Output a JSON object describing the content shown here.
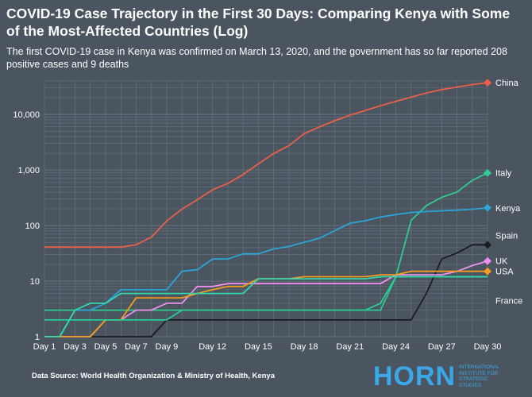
{
  "header": {
    "title": "COVID-19 Case Trajectory in the First 30 Days: Comparing Kenya with Some of the Most-Affected Countries (Log)",
    "subtitle": "The first COVID-19 case in Kenya was confirmed on March 13, 2020, and the government has so far reported 208 positive cases and 9 deaths"
  },
  "footer": {
    "source": "Data Source: World Health Organization & Ministry of Health, Kenya",
    "logo_word": "HORN",
    "logo_lines": [
      "INTERNATIONAL",
      "INSTITUTE FOR",
      "STRATEGIC",
      "STUDIES"
    ]
  },
  "colors": {
    "background": "#4a5560",
    "grid": "#6b7580",
    "logo": "#3aa8e8"
  },
  "chart_data": {
    "type": "line",
    "title": "COVID-19 Case Trajectory in the First 30 Days: Comparing Kenya with Some of the Most-Affected Countries (Log)",
    "xlabel": "",
    "ylabel": "",
    "yscale": "log",
    "ylim": [
      1,
      40000
    ],
    "xlim": [
      1,
      30
    ],
    "grid": true,
    "x_ticks": [
      1,
      3,
      5,
      7,
      9,
      12,
      15,
      18,
      21,
      24,
      27,
      30
    ],
    "x_tick_labels": [
      "Day 1",
      "Day 3",
      "Day 5",
      "Day 7",
      "Day 9",
      "Day 12",
      "Day 15",
      "Day 18",
      "Day 21",
      "Day 24",
      "Day 27",
      "Day 30"
    ],
    "y_ticks": [
      1,
      10,
      100,
      1000,
      10000
    ],
    "y_tick_labels": [
      "1",
      "10",
      "100",
      "1,000",
      "10,000"
    ],
    "x": [
      1,
      2,
      3,
      4,
      5,
      6,
      7,
      8,
      9,
      10,
      11,
      12,
      13,
      14,
      15,
      16,
      17,
      18,
      19,
      20,
      21,
      22,
      23,
      24,
      25,
      26,
      27,
      28,
      29,
      30
    ],
    "series": [
      {
        "name": "China",
        "color": "#e8604a",
        "values": [
          41,
          41,
          41,
          41,
          41,
          41,
          45,
          62,
          121,
          198,
          291,
          440,
          571,
          830,
          1287,
          1975,
          2744,
          4515,
          5974,
          7711,
          9692,
          11791,
          14380,
          17205,
          20438,
          24324,
          28018,
          31161,
          34546,
          37198
        ]
      },
      {
        "name": "Italy",
        "color": "#2ecc8e",
        "values": [
          3,
          3,
          3,
          3,
          3,
          3,
          3,
          3,
          3,
          3,
          3,
          3,
          3,
          3,
          3,
          3,
          3,
          3,
          3,
          3,
          3,
          3,
          4,
          12,
          124,
          229,
          322,
          400,
          650,
          888
        ]
      },
      {
        "name": "Kenya",
        "color": "#2ba5d8",
        "values": [
          1,
          1,
          3,
          3,
          4,
          7,
          7,
          7,
          7,
          15,
          16,
          25,
          25,
          31,
          31,
          38,
          42,
          50,
          59,
          81,
          110,
          122,
          142,
          158,
          172,
          179,
          184,
          189,
          197,
          208
        ]
      },
      {
        "name": "Spain",
        "color": "#1a1d22",
        "values": [
          1,
          1,
          1,
          1,
          1,
          1,
          1,
          1,
          2,
          2,
          2,
          2,
          2,
          2,
          2,
          2,
          2,
          2,
          2,
          2,
          2,
          2,
          2,
          2,
          2,
          6,
          25,
          32,
          45,
          45
        ]
      },
      {
        "name": "UK",
        "color": "#f08ff0",
        "values": [
          1,
          1,
          1,
          1,
          2,
          2,
          3,
          3,
          4,
          4,
          8,
          8,
          9,
          9,
          9,
          9,
          9,
          9,
          9,
          9,
          9,
          9,
          9,
          13,
          13,
          13,
          13,
          15,
          19,
          23
        ]
      },
      {
        "name": "USA",
        "color": "#f39c1f",
        "values": [
          1,
          1,
          1,
          1,
          2,
          2,
          5,
          5,
          5,
          5,
          6,
          7,
          8,
          8,
          11,
          11,
          11,
          12,
          12,
          12,
          12,
          12,
          13,
          13,
          15,
          15,
          15,
          15,
          15,
          15
        ]
      },
      {
        "name": "France",
        "color": "#27cc95",
        "values": [
          2,
          2,
          2,
          2,
          2,
          2,
          2,
          2,
          2,
          3,
          3,
          3,
          3,
          3,
          3,
          3,
          3,
          3,
          3,
          3,
          3,
          3,
          3,
          12,
          12,
          12,
          12,
          12,
          12,
          12
        ]
      },
      {
        "name": "",
        "color": "#33d7ab",
        "values": [
          1,
          1,
          3,
          4,
          4,
          6,
          6,
          6,
          6,
          6,
          6,
          6,
          6,
          6,
          11,
          11,
          11,
          11,
          11,
          11,
          11,
          11,
          12,
          12,
          12,
          12,
          12,
          12,
          12,
          12
        ]
      }
    ],
    "end_markers": [
      "China",
      "Italy",
      "Kenya",
      "Spain",
      "UK",
      "USA"
    ]
  }
}
